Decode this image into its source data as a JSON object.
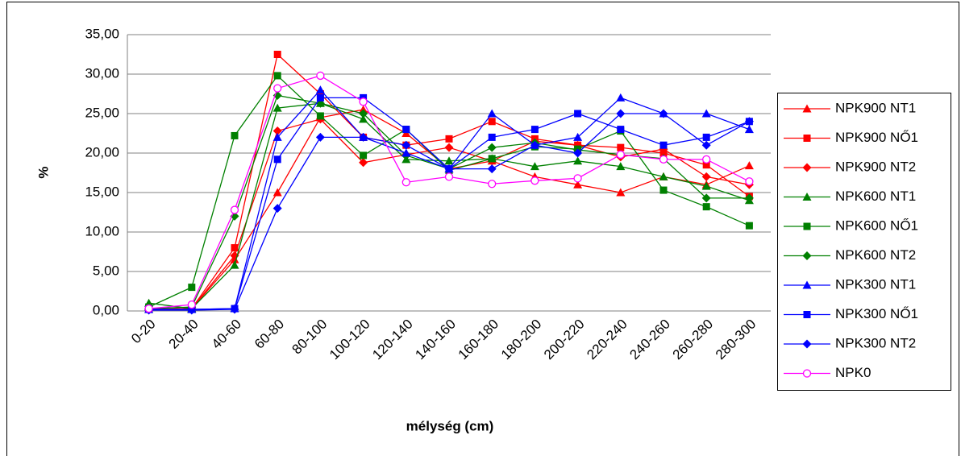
{
  "chart_data": {
    "type": "line",
    "y_label": "%",
    "x_label": "mélység (cm)",
    "categories": [
      "0-20",
      "20-40",
      "40-60",
      "60-80",
      "80-100",
      "100-120",
      "120-140",
      "140-160",
      "160-180",
      "180-200",
      "200-220",
      "220-240",
      "240-260",
      "260-280",
      "280-300"
    ],
    "ylim": [
      0,
      35
    ],
    "yticks": [
      {
        "value": 0,
        "label": "0,00"
      },
      {
        "value": 5,
        "label": "5,00"
      },
      {
        "value": 10,
        "label": "10,00"
      },
      {
        "value": 15,
        "label": "15,00"
      },
      {
        "value": 20,
        "label": "20,00"
      },
      {
        "value": 25,
        "label": "25,00"
      },
      {
        "value": 30,
        "label": "30,00"
      },
      {
        "value": 35,
        "label": "35,00"
      }
    ],
    "grid": true,
    "legend": "right",
    "series": [
      {
        "name": "NPK900 NT1",
        "color": "#ff0000",
        "marker": "triangle",
        "values": [
          0.2,
          0.3,
          6.5,
          15.0,
          24.5,
          25.5,
          22.5,
          18.0,
          19.0,
          17.0,
          16.0,
          15.0,
          17.0,
          16.0,
          18.4
        ]
      },
      {
        "name": "NPK900 NŐ1",
        "color": "#ff0000",
        "marker": "square",
        "values": [
          0.2,
          0.3,
          8.0,
          32.5,
          27.5,
          22.0,
          21.0,
          21.8,
          24.0,
          21.8,
          21.0,
          20.7,
          20.0,
          18.5,
          14.5
        ]
      },
      {
        "name": "NPK900 NT2",
        "color": "#ff0000",
        "marker": "diamond",
        "values": [
          0.2,
          0.3,
          7.0,
          22.8,
          24.3,
          18.8,
          19.8,
          20.7,
          19.0,
          21.5,
          21.0,
          19.5,
          20.5,
          17.0,
          16.0
        ]
      },
      {
        "name": "NPK600 NT1",
        "color": "#008000",
        "marker": "triangle",
        "values": [
          1.0,
          0.3,
          5.8,
          25.7,
          26.3,
          24.3,
          19.2,
          19.0,
          19.3,
          18.3,
          19.0,
          18.3,
          17.0,
          15.8,
          14.0
        ]
      },
      {
        "name": "NPK600 NŐ1",
        "color": "#008000",
        "marker": "square",
        "values": [
          0.5,
          3.0,
          22.2,
          29.8,
          24.7,
          19.7,
          23.0,
          17.8,
          19.3,
          20.8,
          20.5,
          22.8,
          15.3,
          13.2,
          10.8
        ]
      },
      {
        "name": "NPK600 NT2",
        "color": "#008000",
        "marker": "diamond",
        "values": [
          0.3,
          0.5,
          12.0,
          27.3,
          26.3,
          25.0,
          19.7,
          18.0,
          20.7,
          21.3,
          20.4,
          19.8,
          19.3,
          14.3,
          14.3
        ]
      },
      {
        "name": "NPK300 NT1",
        "color": "#0000ff",
        "marker": "triangle",
        "values": [
          0.2,
          0.2,
          0.3,
          22.0,
          28.0,
          22.0,
          20.0,
          18.0,
          25.0,
          21.0,
          22.0,
          27.0,
          25.0,
          25.0,
          23.0
        ]
      },
      {
        "name": "NPK300 NŐ1",
        "color": "#0000ff",
        "marker": "square",
        "values": [
          0.2,
          0.2,
          0.3,
          19.2,
          27.0,
          27.0,
          23.0,
          18.0,
          22.0,
          23.0,
          25.0,
          23.0,
          21.0,
          22.0,
          24.0
        ]
      },
      {
        "name": "NPK300 NT2",
        "color": "#0000ff",
        "marker": "diamond",
        "values": [
          0.1,
          0.1,
          0.2,
          13.0,
          22.0,
          22.0,
          21.0,
          18.0,
          18.0,
          21.0,
          20.0,
          25.0,
          25.0,
          21.0,
          24.0
        ]
      },
      {
        "name": "NPK0",
        "color": "#ff00ff",
        "marker": "circle",
        "values": [
          0.3,
          0.8,
          12.8,
          28.2,
          29.8,
          26.5,
          16.3,
          17.0,
          16.1,
          16.5,
          16.8,
          19.8,
          19.2,
          19.2,
          16.4
        ]
      }
    ]
  }
}
